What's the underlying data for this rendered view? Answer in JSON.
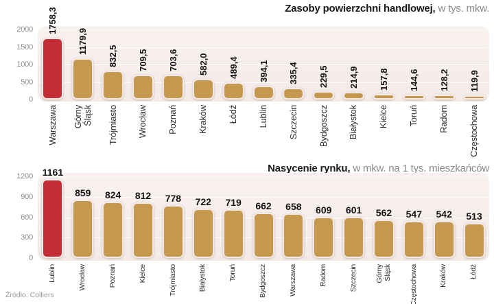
{
  "source": "Źródło: Colliers",
  "colors": {
    "highlight": "#c22d38",
    "bar": "#c5984f",
    "panel": "#f7efed"
  },
  "chart_data": [
    {
      "type": "bar",
      "title": "Zasoby powierzchni handlowej,",
      "subtitle": "w tys. mkw.",
      "categories": [
        "Warszawa",
        "Górny\nŚląsk",
        "Trójmiasto",
        "Wrocław",
        "Poznań",
        "Kraków",
        "Łódź",
        "Lublin",
        "Szczecin",
        "Bydgoszcz",
        "Białystok",
        "Kielce",
        "Toruń",
        "Radom",
        "Częstochowa"
      ],
      "values": [
        1758.3,
        1179.9,
        832.5,
        709.5,
        703.6,
        582.0,
        489.4,
        394.1,
        335.4,
        229.5,
        214.9,
        157.8,
        144.6,
        128.2,
        119.9
      ],
      "value_labels": [
        "1758,3",
        "1179,9",
        "832,5",
        "709,5",
        "703,6",
        "582,0",
        "489,4",
        "394,1",
        "335,4",
        "229,5",
        "214,9",
        "157,8",
        "144,6",
        "128,2",
        "119,9"
      ],
      "yticks": [
        0,
        500,
        1000,
        1500,
        2000
      ],
      "ylim": [
        0,
        2000
      ],
      "highlight_index": 0,
      "value_label_orientation": "vertical",
      "grid": true,
      "legend": "none"
    },
    {
      "type": "bar",
      "title": "Nasycenie rynku,",
      "subtitle": "w mkw. na 1 tys. mieszkańców",
      "categories": [
        "Lublin",
        "Wrocław",
        "Poznań",
        "Kielce",
        "Trójmiasto",
        "Białystok",
        "Toruń",
        "Bydgoszcz",
        "Warszawa",
        "Radom",
        "Szczecin",
        "Górny\nŚląsk",
        "Częstochowa",
        "Kraków",
        "Łódź"
      ],
      "values": [
        1161,
        859,
        824,
        812,
        778,
        722,
        719,
        662,
        658,
        609,
        601,
        562,
        547,
        542,
        513
      ],
      "value_labels": [
        "1161",
        "859",
        "824",
        "812",
        "778",
        "722",
        "719",
        "662",
        "658",
        "609",
        "601",
        "562",
        "547",
        "542",
        "513"
      ],
      "yticks": [
        0,
        300,
        600,
        900,
        1200
      ],
      "ylim": [
        0,
        1200
      ],
      "highlight_index": 0,
      "value_label_orientation": "horizontal",
      "grid": true,
      "legend": "none"
    }
  ]
}
